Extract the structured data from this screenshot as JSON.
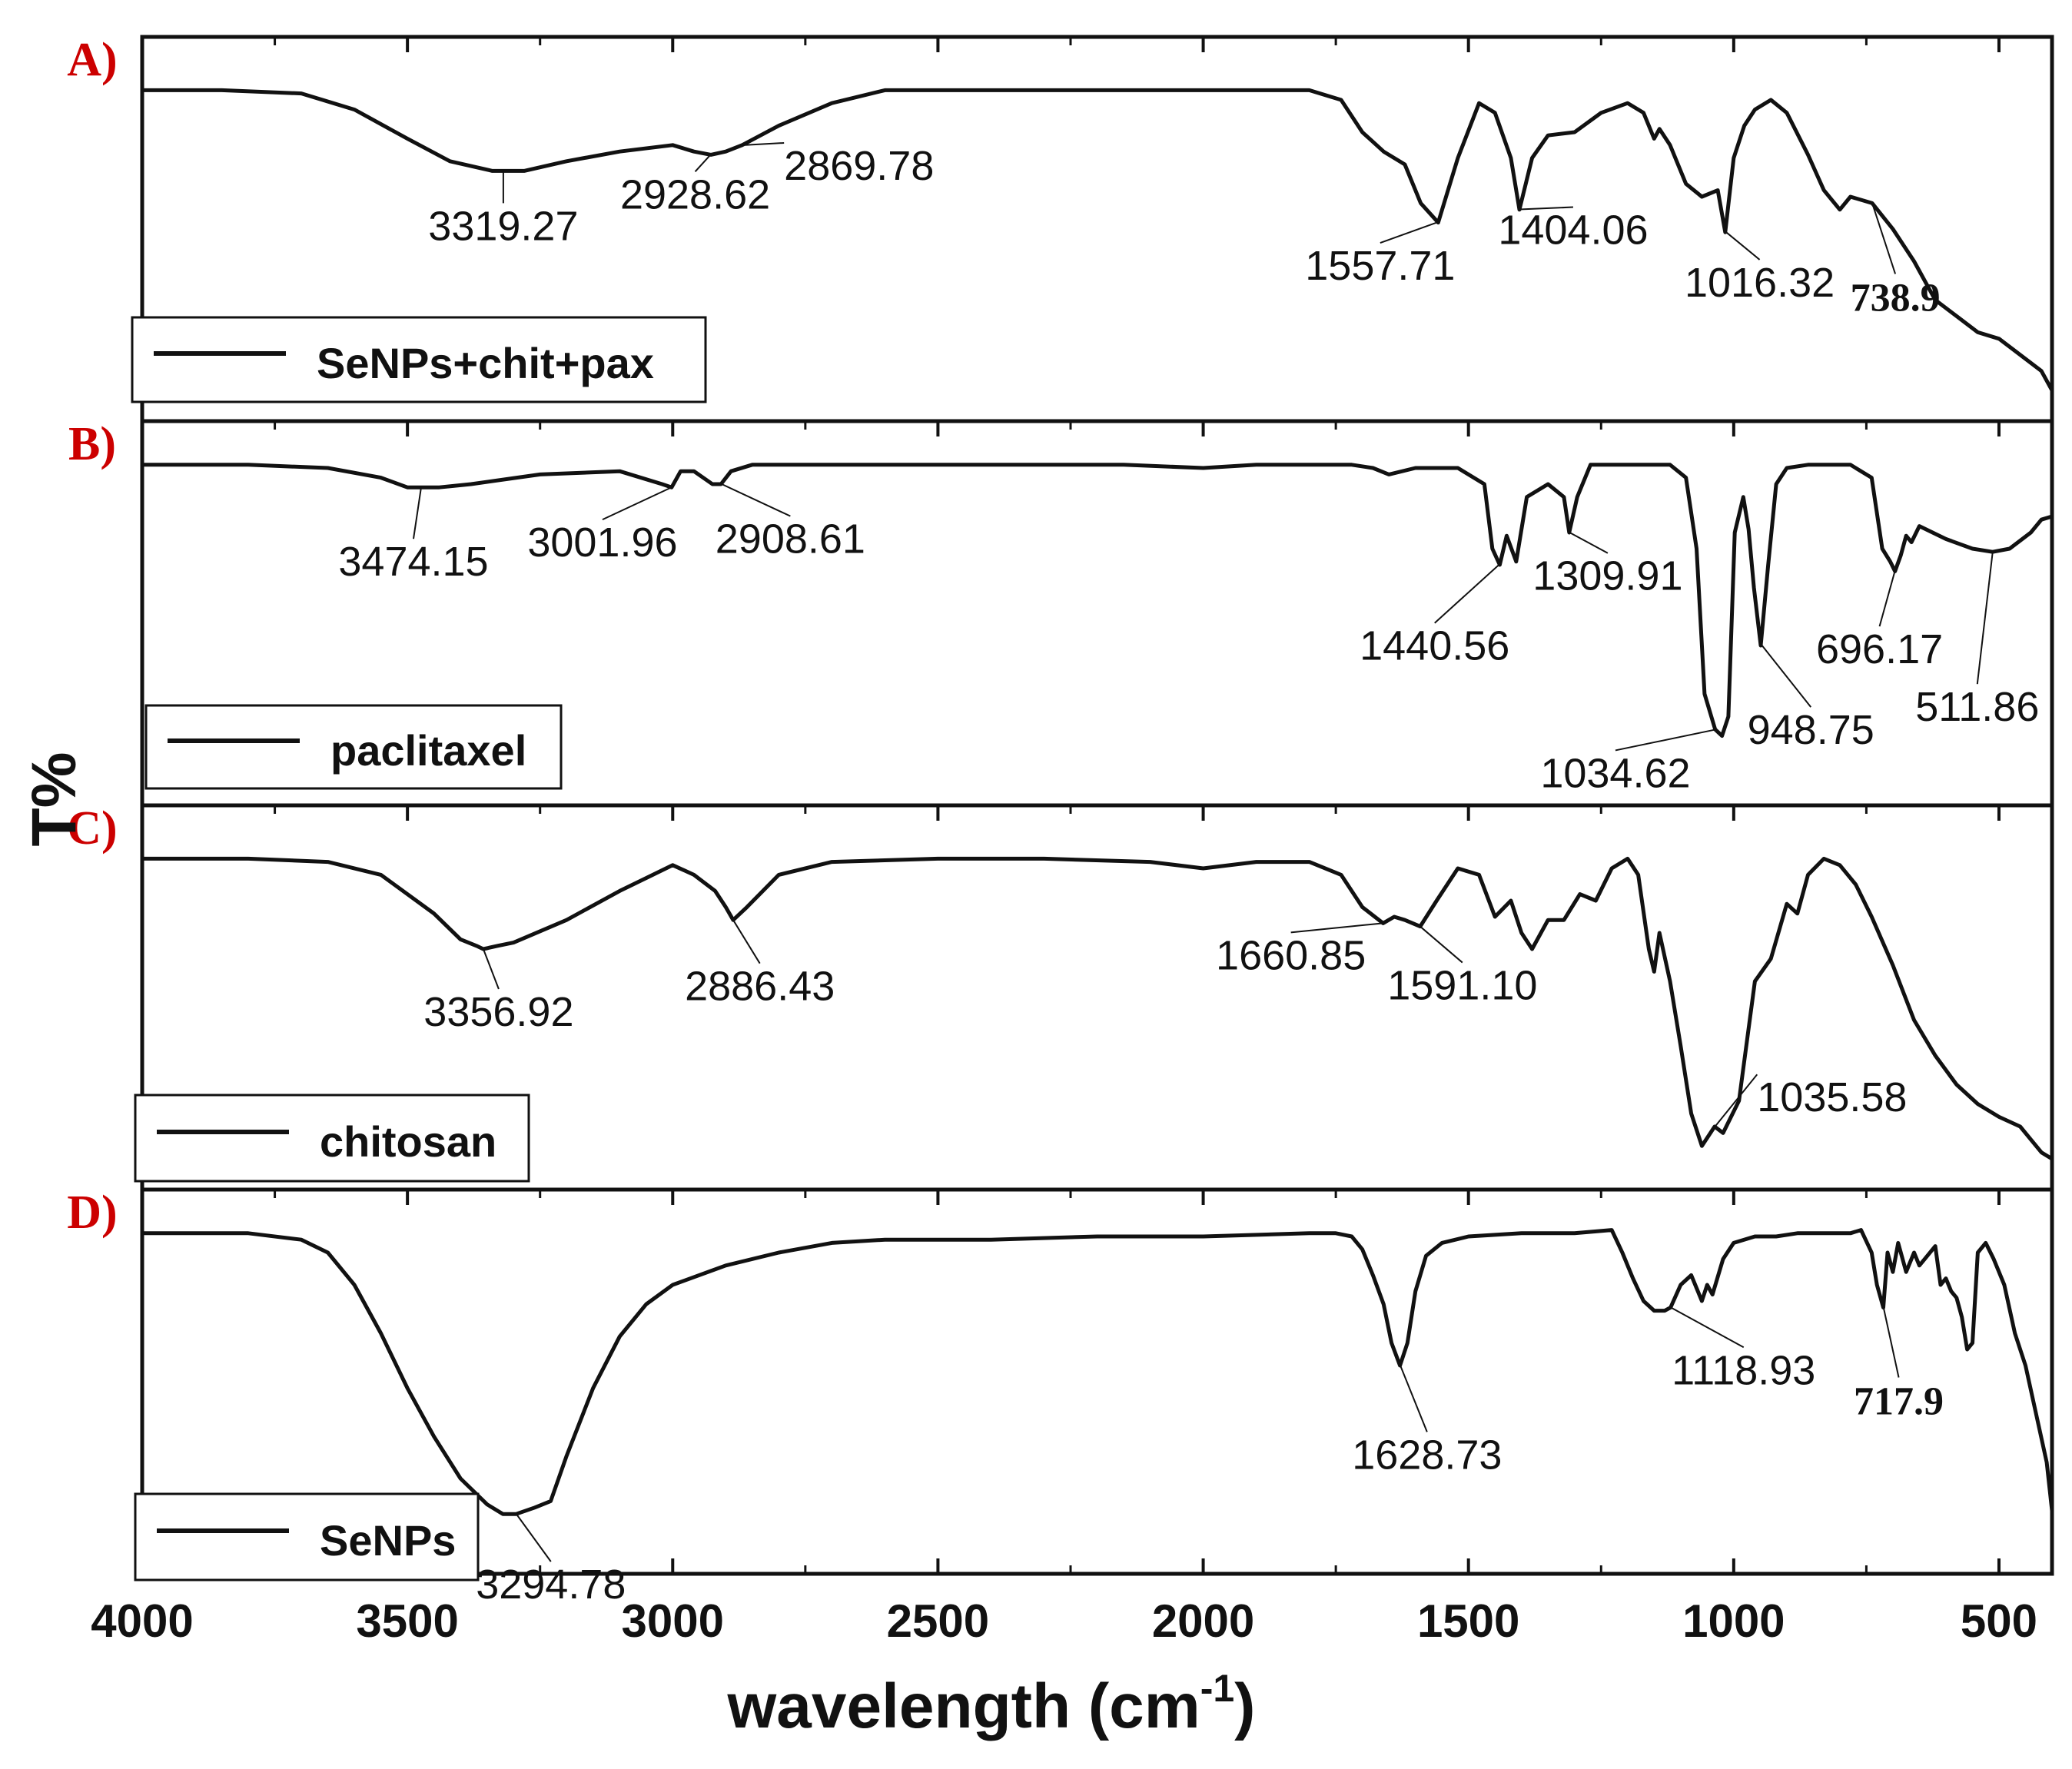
{
  "chart_data": {
    "type": "line",
    "title": "",
    "xlabel": "wavelength (cm",
    "xlabel_superscript": "-1",
    "xlabel_suffix": ")",
    "ylabel": "T%",
    "xlim": [
      4000,
      400
    ],
    "x_reversed": true,
    "x_ticks": [
      4000,
      3500,
      3000,
      2500,
      2000,
      1500,
      1000,
      500
    ],
    "x_tick_labels": [
      "4000",
      "3500",
      "3000",
      "2500",
      "2000",
      "1500",
      "1000",
      "500"
    ],
    "ylim": [
      0,
      1
    ],
    "y_ticks_labeled": false,
    "panel_tag_color": "#cc0000",
    "line_color": "#111111",
    "panels": [
      {
        "tag": "A)",
        "legend": "SeNPs+chit+pax",
        "series": {
          "x": [
            4000,
            3850,
            3700,
            3600,
            3500,
            3420,
            3340,
            3319,
            3280,
            3200,
            3100,
            3000,
            2960,
            2928,
            2900,
            2869,
            2800,
            2700,
            2600,
            2400,
            2200,
            2000,
            1800,
            1740,
            1700,
            1660,
            1620,
            1590,
            1557,
            1520,
            1480,
            1450,
            1420,
            1404,
            1380,
            1350,
            1300,
            1250,
            1200,
            1170,
            1150,
            1140,
            1120,
            1090,
            1060,
            1030,
            1016,
            1000,
            980,
            960,
            930,
            900,
            860,
            830,
            800,
            780,
            739,
            700,
            660,
            620,
            580,
            540,
            500,
            460,
            420,
            400
          ],
          "values": [
            0.93,
            0.93,
            0.92,
            0.87,
            0.78,
            0.71,
            0.68,
            0.68,
            0.68,
            0.71,
            0.74,
            0.76,
            0.74,
            0.73,
            0.74,
            0.76,
            0.82,
            0.89,
            0.93,
            0.93,
            0.93,
            0.93,
            0.93,
            0.9,
            0.8,
            0.74,
            0.7,
            0.58,
            0.52,
            0.72,
            0.89,
            0.86,
            0.72,
            0.56,
            0.72,
            0.79,
            0.8,
            0.86,
            0.89,
            0.86,
            0.78,
            0.81,
            0.76,
            0.64,
            0.6,
            0.62,
            0.49,
            0.72,
            0.82,
            0.87,
            0.9,
            0.86,
            0.73,
            0.62,
            0.56,
            0.6,
            0.58,
            0.5,
            0.4,
            0.28,
            0.23,
            0.18,
            0.16,
            0.11,
            0.06,
            0.0
          ]
        },
        "peaks": [
          {
            "label": "3319.27",
            "x": 3319.27
          },
          {
            "label": "2928.62",
            "x": 2928.62
          },
          {
            "label": "2869.78",
            "x": 2869.78
          },
          {
            "label": "1557.71",
            "x": 1557.71
          },
          {
            "label": "1404.06",
            "x": 1404.06
          },
          {
            "label": "1016.32",
            "x": 1016.32
          },
          {
            "label": "738.9",
            "x": 738.9,
            "bold": true
          }
        ]
      },
      {
        "tag": "B)",
        "legend": "paclitaxel",
        "series": {
          "x": [
            4000,
            3800,
            3650,
            3550,
            3500,
            3474,
            3440,
            3380,
            3250,
            3100,
            3020,
            3002,
            2985,
            2960,
            2925,
            2909,
            2890,
            2850,
            2700,
            2500,
            2300,
            2150,
            2000,
            1900,
            1800,
            1720,
            1680,
            1650,
            1600,
            1520,
            1470,
            1455,
            1441,
            1428,
            1410,
            1390,
            1350,
            1320,
            1310,
            1295,
            1270,
            1200,
            1120,
            1090,
            1070,
            1055,
            1035,
            1022,
            1010,
            998,
            982,
            972,
            962,
            949,
            935,
            920,
            900,
            860,
            780,
            740,
            720,
            705,
            696,
            685,
            675,
            665,
            650,
            600,
            550,
            512,
            480,
            440,
            420,
            400
          ],
          "values": [
            0.96,
            0.96,
            0.95,
            0.92,
            0.89,
            0.89,
            0.89,
            0.9,
            0.93,
            0.94,
            0.9,
            0.89,
            0.94,
            0.94,
            0.9,
            0.9,
            0.94,
            0.96,
            0.96,
            0.96,
            0.96,
            0.96,
            0.95,
            0.96,
            0.96,
            0.96,
            0.95,
            0.93,
            0.95,
            0.95,
            0.9,
            0.7,
            0.65,
            0.74,
            0.66,
            0.86,
            0.9,
            0.86,
            0.75,
            0.86,
            0.96,
            0.96,
            0.96,
            0.92,
            0.7,
            0.25,
            0.14,
            0.12,
            0.18,
            0.75,
            0.86,
            0.76,
            0.58,
            0.4,
            0.65,
            0.9,
            0.95,
            0.96,
            0.96,
            0.92,
            0.7,
            0.66,
            0.63,
            0.68,
            0.74,
            0.72,
            0.77,
            0.73,
            0.7,
            0.69,
            0.7,
            0.75,
            0.79,
            0.8
          ]
        },
        "peaks": [
          {
            "label": "3474.15",
            "x": 3474.15
          },
          {
            "label": "3001.96",
            "x": 3001.96
          },
          {
            "label": "2908.61",
            "x": 2908.61
          },
          {
            "label": "1440.56",
            "x": 1440.56
          },
          {
            "label": "1309.91",
            "x": 1309.91
          },
          {
            "label": "1034.62",
            "x": 1034.62
          },
          {
            "label": "948.75",
            "x": 948.75
          },
          {
            "label": "696.17",
            "x": 696.17
          },
          {
            "label": "511.86",
            "x": 511.86
          }
        ]
      },
      {
        "tag": "C)",
        "legend": "chitosan",
        "series": {
          "x": [
            4000,
            3800,
            3650,
            3550,
            3450,
            3400,
            3370,
            3357,
            3330,
            3300,
            3200,
            3100,
            3000,
            2960,
            2920,
            2900,
            2886,
            2860,
            2800,
            2700,
            2500,
            2300,
            2100,
            2000,
            1900,
            1800,
            1740,
            1700,
            1661,
            1640,
            1620,
            1591,
            1560,
            1520,
            1480,
            1450,
            1420,
            1400,
            1380,
            1350,
            1320,
            1290,
            1260,
            1230,
            1200,
            1180,
            1160,
            1150,
            1140,
            1120,
            1100,
            1080,
            1060,
            1040,
            1036,
            1020,
            990,
            960,
            930,
            900,
            880,
            860,
            830,
            800,
            770,
            740,
            700,
            660,
            620,
            580,
            540,
            500,
            460,
            440,
            420,
            400
          ],
          "values": [
            0.93,
            0.93,
            0.92,
            0.88,
            0.76,
            0.68,
            0.66,
            0.65,
            0.66,
            0.67,
            0.74,
            0.83,
            0.91,
            0.88,
            0.83,
            0.78,
            0.74,
            0.78,
            0.88,
            0.92,
            0.93,
            0.93,
            0.92,
            0.9,
            0.92,
            0.92,
            0.88,
            0.78,
            0.73,
            0.75,
            0.74,
            0.72,
            0.8,
            0.9,
            0.88,
            0.75,
            0.8,
            0.7,
            0.65,
            0.74,
            0.74,
            0.82,
            0.8,
            0.9,
            0.93,
            0.88,
            0.65,
            0.58,
            0.7,
            0.55,
            0.35,
            0.14,
            0.04,
            0.09,
            0.1,
            0.08,
            0.18,
            0.55,
            0.62,
            0.79,
            0.76,
            0.88,
            0.93,
            0.91,
            0.85,
            0.75,
            0.6,
            0.43,
            0.32,
            0.23,
            0.17,
            0.13,
            0.1,
            0.06,
            0.02,
            0.0
          ]
        },
        "peaks": [
          {
            "label": "3356.92",
            "x": 3356.92
          },
          {
            "label": "2886.43",
            "x": 2886.43
          },
          {
            "label": "1660.85",
            "x": 1660.85
          },
          {
            "label": "1591.10",
            "x": 1591.1
          },
          {
            "label": "1035.58",
            "x": 1035.58
          }
        ]
      },
      {
        "tag": "D)",
        "legend": "SeNPs",
        "series": {
          "x": [
            4000,
            3800,
            3700,
            3650,
            3600,
            3550,
            3500,
            3450,
            3400,
            3350,
            3320,
            3295,
            3260,
            3230,
            3200,
            3150,
            3100,
            3050,
            3000,
            2900,
            2800,
            2700,
            2600,
            2400,
            2200,
            2000,
            1800,
            1750,
            1720,
            1700,
            1680,
            1660,
            1645,
            1629,
            1615,
            1600,
            1580,
            1550,
            1500,
            1400,
            1300,
            1230,
            1210,
            1190,
            1170,
            1150,
            1130,
            1119,
            1100,
            1080,
            1060,
            1050,
            1040,
            1020,
            1000,
            960,
            920,
            880,
            840,
            800,
            780,
            760,
            740,
            730,
            718,
            710,
            700,
            690,
            675,
            660,
            650,
            640,
            620,
            610,
            600,
            590,
            580,
            570,
            560,
            550,
            540,
            525,
            510,
            490,
            470,
            450,
            430,
            410,
            400
          ],
          "values": [
            0.96,
            0.96,
            0.94,
            0.9,
            0.8,
            0.65,
            0.48,
            0.33,
            0.2,
            0.12,
            0.09,
            0.09,
            0.11,
            0.13,
            0.27,
            0.48,
            0.64,
            0.74,
            0.8,
            0.86,
            0.9,
            0.93,
            0.94,
            0.94,
            0.95,
            0.95,
            0.96,
            0.96,
            0.95,
            0.91,
            0.83,
            0.74,
            0.62,
            0.55,
            0.62,
            0.78,
            0.89,
            0.93,
            0.95,
            0.96,
            0.96,
            0.97,
            0.9,
            0.82,
            0.75,
            0.72,
            0.72,
            0.73,
            0.8,
            0.83,
            0.75,
            0.8,
            0.77,
            0.88,
            0.93,
            0.95,
            0.95,
            0.96,
            0.96,
            0.96,
            0.96,
            0.97,
            0.9,
            0.8,
            0.73,
            0.9,
            0.84,
            0.93,
            0.84,
            0.9,
            0.86,
            0.88,
            0.92,
            0.8,
            0.82,
            0.78,
            0.76,
            0.7,
            0.6,
            0.62,
            0.9,
            0.93,
            0.88,
            0.8,
            0.65,
            0.55,
            0.4,
            0.25,
            0.1
          ]
        },
        "peaks": [
          {
            "label": "3294.78",
            "x": 3294.78
          },
          {
            "label": "1628.73",
            "x": 1628.73
          },
          {
            "label": "1118.93",
            "x": 1118.93
          },
          {
            "label": "717.9",
            "x": 717.9,
            "bold": true
          }
        ]
      }
    ]
  }
}
